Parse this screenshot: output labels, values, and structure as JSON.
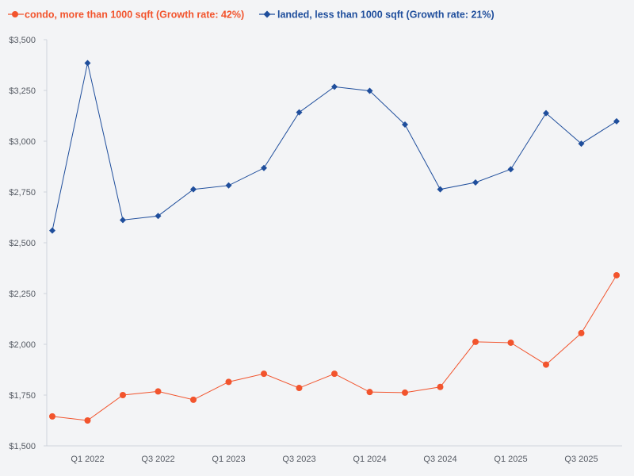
{
  "chart_data": {
    "type": "line",
    "title": "",
    "xlabel": "",
    "ylabel": "",
    "ylim": [
      1500,
      3500
    ],
    "yticks": [
      1500,
      1750,
      2000,
      2250,
      2500,
      2750,
      3000,
      3250,
      3500
    ],
    "ytick_labels": [
      "$1,500",
      "$1,750",
      "$2,000",
      "$2,250",
      "$2,500",
      "$2,750",
      "$3,000",
      "$3,250",
      "$3,500"
    ],
    "x": [
      "Q4 2021",
      "Q1 2022",
      "Q2 2022",
      "Q3 2022",
      "Q4 2022",
      "Q1 2023",
      "Q2 2023",
      "Q3 2023",
      "Q4 2023",
      "Q1 2024",
      "Q2 2024",
      "Q3 2024",
      "Q4 2024",
      "Q1 2025",
      "Q2 2025",
      "Q3 2025",
      "Q4 2025"
    ],
    "xtick_labels": [
      {
        "index": 1,
        "label": "Q1 2022"
      },
      {
        "index": 3,
        "label": "Q3 2022"
      },
      {
        "index": 5,
        "label": "Q1 2023"
      },
      {
        "index": 7,
        "label": "Q3 2023"
      },
      {
        "index": 9,
        "label": "Q1 2024"
      },
      {
        "index": 11,
        "label": "Q3 2024"
      },
      {
        "index": 13,
        "label": "Q1 2025"
      },
      {
        "index": 15,
        "label": "Q3 2025"
      }
    ],
    "grid": false,
    "legend_position": "top-left",
    "series": [
      {
        "name": "condo, more than 1000 sqft (Growth rate: 42%)",
        "color": "#f2542d",
        "marker": "circle",
        "values": [
          1645,
          1625,
          1750,
          1768,
          1727,
          1815,
          1855,
          1785,
          1855,
          1765,
          1762,
          1790,
          2012,
          2008,
          1900,
          2055,
          2340
        ]
      },
      {
        "name": "landed, less than 1000 sqft (Growth rate: 21%)",
        "color": "#1f4e9c",
        "marker": "diamond",
        "values": [
          2560,
          3385,
          2612,
          2632,
          2763,
          2782,
          2868,
          3142,
          3268,
          3248,
          3082,
          2763,
          2797,
          2862,
          3138,
          2988,
          3098
        ]
      }
    ]
  }
}
